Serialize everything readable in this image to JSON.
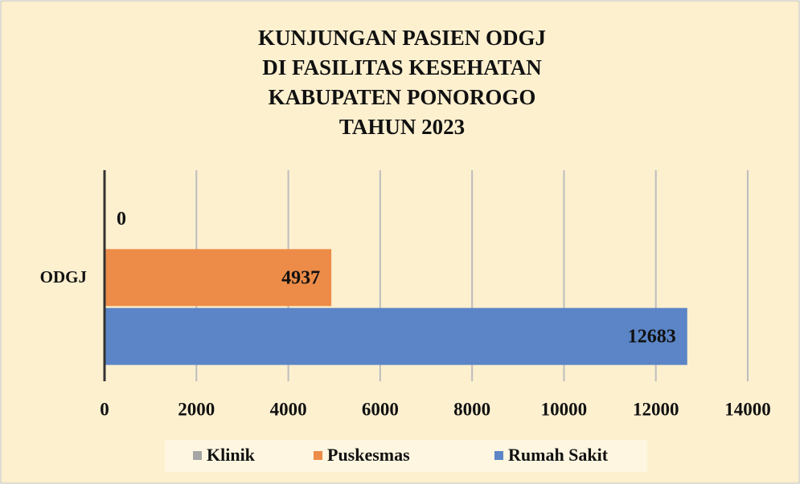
{
  "chart_data": {
    "type": "hbar",
    "title": [
      "KUNJUNGAN PASIEN ODGJ",
      "DI FASILITAS KESEHATAN",
      "KABUPATEN PONOROGO",
      "TAHUN 2023"
    ],
    "categories": [
      "ODGJ"
    ],
    "series": [
      {
        "name": "Klinik",
        "color": "#a5a5a5",
        "values": [
          0
        ]
      },
      {
        "name": "Puskesmas",
        "color": "#ed8c48",
        "values": [
          4937
        ]
      },
      {
        "name": "Rumah Sakit",
        "color": "#5b85c6",
        "values": [
          12683
        ]
      }
    ],
    "xlim": [
      0,
      14000
    ],
    "xticks": [
      0,
      2000,
      4000,
      6000,
      8000,
      10000,
      12000,
      14000
    ],
    "grid": true,
    "legend": "bottom"
  }
}
